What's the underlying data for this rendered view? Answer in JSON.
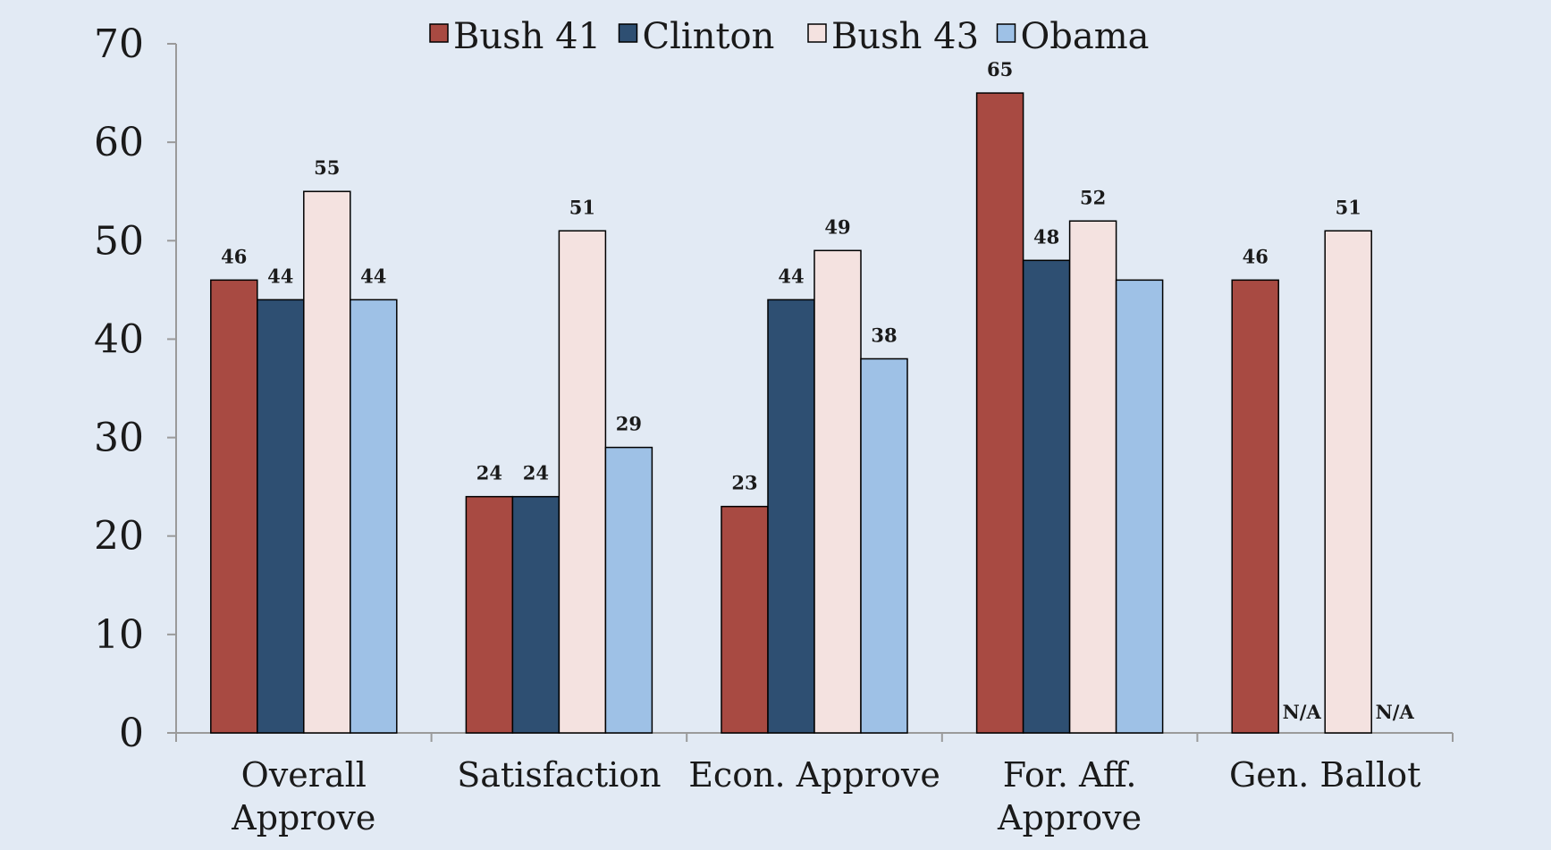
{
  "chart_data": {
    "type": "bar",
    "categories": [
      [
        "Overall",
        "Approve"
      ],
      [
        "Satisfaction"
      ],
      [
        "Econ. Approve"
      ],
      [
        "For. Aff.",
        "Approve"
      ],
      [
        "Gen. Ballot"
      ]
    ],
    "series": [
      {
        "name": "Bush 41",
        "color": "#a84a42",
        "values": [
          46,
          24,
          23,
          65,
          46
        ]
      },
      {
        "name": "Clinton",
        "color": "#2e4f72",
        "values": [
          44,
          24,
          44,
          48,
          null
        ]
      },
      {
        "name": "Bush 43",
        "color": "#f4e2e0",
        "values": [
          55,
          51,
          49,
          52,
          51
        ]
      },
      {
        "name": "Obama",
        "color": "#9ec1e6",
        "values": [
          44,
          29,
          38,
          46,
          null
        ]
      }
    ],
    "data_labels": [
      [
        "46",
        "44",
        "55",
        "44"
      ],
      [
        "24",
        "24",
        "51",
        "29"
      ],
      [
        "23",
        "44",
        "49",
        "38"
      ],
      [
        "65",
        "48",
        "52",
        ""
      ],
      [
        "46",
        "N/A",
        "51",
        "N/A"
      ]
    ],
    "yticks": [
      "0",
      "10",
      "20",
      "30",
      "40",
      "50",
      "60",
      "70"
    ],
    "ylim": [
      0,
      70
    ],
    "title": "",
    "xlabel": "",
    "ylabel": "",
    "legend_position": "top",
    "grid": false,
    "plot_background": "#e2eaf4",
    "axis_color": "#9a9a9a",
    "bar_edge_color": "#000000"
  }
}
